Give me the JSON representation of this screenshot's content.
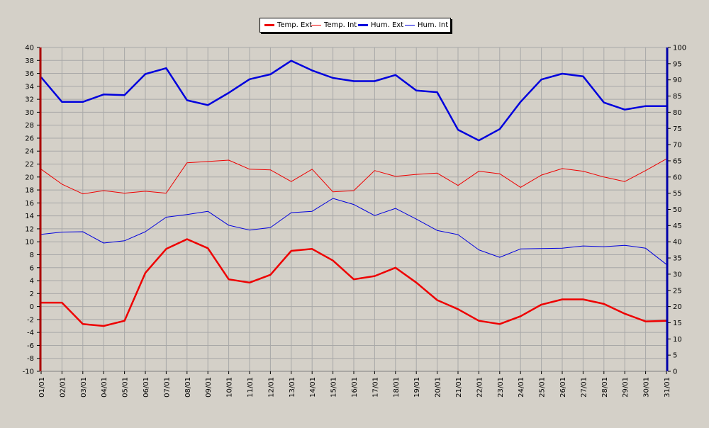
{
  "chart_data": {
    "type": "line",
    "title": "",
    "xlabel": "",
    "ylabel": "",
    "categories": [
      "01/01",
      "02/01",
      "03/01",
      "04/01",
      "05/01",
      "06/01",
      "07/01",
      "08/01",
      "09/01",
      "10/01",
      "11/01",
      "12/01",
      "13/01",
      "14/01",
      "15/01",
      "16/01",
      "17/01",
      "18/01",
      "19/01",
      "20/01",
      "21/01",
      "22/01",
      "23/01",
      "24/01",
      "25/01",
      "26/01",
      "27/01",
      "28/01",
      "29/01",
      "30/01",
      "31/01"
    ],
    "left_axis": {
      "ylim": [
        -10,
        40
      ],
      "ticks": [
        -10,
        -8,
        -6,
        -4,
        -2,
        0,
        2,
        4,
        6,
        8,
        10,
        12,
        14,
        16,
        18,
        20,
        22,
        24,
        26,
        28,
        30,
        32,
        34,
        36,
        38,
        40
      ],
      "color": "#cc0000"
    },
    "right_axis": {
      "ylim": [
        0,
        100
      ],
      "ticks": [
        0,
        5,
        10,
        15,
        20,
        25,
        30,
        35,
        40,
        45,
        50,
        55,
        60,
        65,
        70,
        75,
        80,
        85,
        90,
        95,
        100
      ],
      "color": "#0000cc"
    },
    "grid": true,
    "legend_position": "top-center",
    "series": [
      {
        "name": "Temp. Ext",
        "axis": "left",
        "color": "#ee0000",
        "width": "thick",
        "values": [
          0.6,
          0.6,
          -2.7,
          -3.0,
          -2.2,
          5.2,
          8.9,
          10.4,
          9.0,
          4.2,
          3.7,
          4.9,
          8.6,
          8.9,
          7.1,
          4.2,
          4.7,
          6.0,
          3.7,
          1.0,
          -0.4,
          -2.2,
          -2.7,
          -1.5,
          0.3,
          1.1,
          1.1,
          0.4,
          -1.1,
          -2.3,
          -2.2
        ]
      },
      {
        "name": "Temp. Int",
        "axis": "left",
        "color": "#ee0000",
        "width": "thin",
        "values": [
          21.2,
          18.9,
          17.4,
          17.9,
          17.5,
          17.8,
          17.5,
          22.2,
          22.4,
          22.6,
          21.2,
          21.1,
          19.3,
          21.2,
          17.7,
          17.9,
          21.0,
          20.1,
          20.4,
          20.6,
          18.7,
          20.9,
          20.5,
          18.4,
          20.3,
          21.3,
          20.9,
          20.0,
          19.3,
          21.0,
          22.8
        ]
      },
      {
        "name": "Hum. Ext",
        "axis": "right",
        "color": "#0000dd",
        "width": "thick",
        "values": [
          90.8,
          83.2,
          83.2,
          85.5,
          85.3,
          91.8,
          93.6,
          83.7,
          82.2,
          86.0,
          90.2,
          91.7,
          95.9,
          92.9,
          90.6,
          89.6,
          89.6,
          91.5,
          86.7,
          86.2,
          74.6,
          71.3,
          74.8,
          83.2,
          90.1,
          91.9,
          91.1,
          83.0,
          80.8,
          81.9,
          81.9
        ]
      },
      {
        "name": "Hum. Int",
        "axis": "right",
        "color": "#0000dd",
        "width": "thin",
        "values": [
          42.3,
          43.0,
          43.1,
          39.6,
          40.3,
          43.1,
          47.6,
          48.4,
          49.4,
          45.1,
          43.6,
          44.4,
          49.0,
          49.4,
          53.4,
          51.5,
          48.1,
          50.3,
          47.0,
          43.5,
          42.2,
          37.5,
          35.2,
          37.8,
          37.9,
          38.0,
          38.7,
          38.5,
          38.9,
          38.0,
          33.0
        ]
      }
    ]
  }
}
